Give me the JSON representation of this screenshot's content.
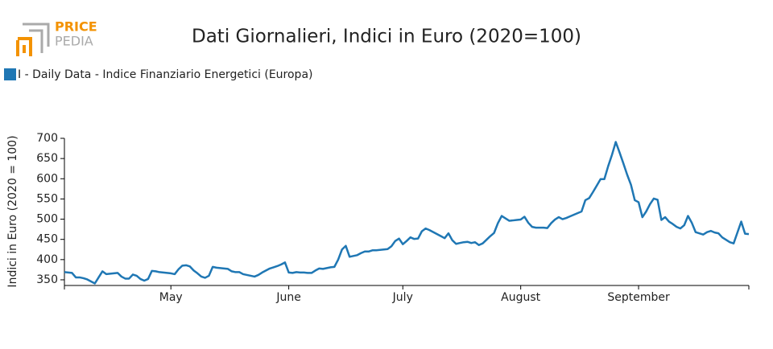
{
  "logo": {
    "top": "PRICE",
    "bottom": "PEDIA"
  },
  "chart_data": {
    "type": "line",
    "title": "Dati Giornalieri, Indici in Euro (2020=100)",
    "y_label": "Indici in Euro (2020 = 100)",
    "categories": [
      null,
      null,
      null,
      null,
      null,
      null,
      null,
      null,
      null,
      null,
      null,
      null,
      null,
      null,
      null,
      null,
      null,
      null,
      null,
      null,
      null,
      null,
      null,
      null,
      null,
      null,
      null,
      null,
      "May",
      null,
      null,
      null,
      null,
      null,
      null,
      null,
      null,
      null,
      null,
      null,
      null,
      null,
      null,
      null,
      null,
      null,
      null,
      null,
      null,
      null,
      null,
      null,
      null,
      null,
      null,
      null,
      null,
      null,
      null,
      "June",
      null,
      null,
      null,
      null,
      null,
      null,
      null,
      null,
      null,
      null,
      null,
      null,
      null,
      null,
      null,
      null,
      null,
      null,
      null,
      null,
      null,
      null,
      null,
      null,
      null,
      null,
      null,
      null,
      null,
      "July",
      null,
      null,
      null,
      null,
      null,
      null,
      null,
      null,
      null,
      null,
      null,
      null,
      null,
      null,
      null,
      null,
      null,
      null,
      null,
      null,
      null,
      null,
      null,
      null,
      null,
      null,
      null,
      null,
      null,
      null,
      "August",
      null,
      null,
      null,
      null,
      null,
      null,
      null,
      null,
      null,
      null,
      null,
      null,
      null,
      null,
      null,
      null,
      null,
      null,
      null,
      null,
      null,
      null,
      null,
      null,
      null,
      null,
      null,
      null,
      null,
      null,
      "September",
      null,
      null,
      null,
      null,
      null,
      null,
      null,
      null,
      null,
      null,
      null,
      null,
      null,
      null,
      null,
      null,
      null,
      null,
      null,
      null,
      null,
      null,
      null,
      null,
      null,
      null,
      null,
      null,
      null
    ],
    "series": [
      {
        "name": "I - Daily Data - Indice Finanziario Energetici (Europa)",
        "color": "#1f77b4",
        "values": [
          369,
          368,
          367,
          356,
          356,
          354,
          351,
          346,
          341,
          356,
          371,
          364,
          365,
          366,
          367,
          358,
          353,
          353,
          363,
          360,
          352,
          348,
          352,
          372,
          371,
          369,
          368,
          367,
          366,
          364,
          376,
          385,
          386,
          383,
          373,
          366,
          358,
          355,
          360,
          382,
          380,
          379,
          378,
          377,
          371,
          369,
          369,
          364,
          362,
          360,
          358,
          362,
          368,
          373,
          378,
          381,
          384,
          388,
          393,
          368,
          367,
          369,
          368,
          368,
          367,
          367,
          373,
          378,
          377,
          379,
          381,
          382,
          400,
          425,
          434,
          407,
          409,
          411,
          416,
          420,
          420,
          423,
          423,
          424,
          425,
          426,
          433,
          446,
          452,
          438,
          446,
          455,
          451,
          452,
          470,
          477,
          473,
          468,
          463,
          458,
          453,
          465,
          448,
          439,
          441,
          443,
          444,
          441,
          443,
          436,
          440,
          449,
          458,
          466,
          490,
          508,
          502,
          496,
          497,
          498,
          499,
          506,
          491,
          481,
          479,
          479,
          479,
          478,
          490,
          499,
          505,
          500,
          503,
          507,
          511,
          515,
          519,
          547,
          552,
          567,
          583,
          599,
          599,
          631,
          659,
          691,
          665,
          638,
          610,
          585,
          547,
          542,
          505,
          519,
          537,
          551,
          548,
          498,
          505,
          494,
          488,
          481,
          477,
          485,
          508,
          491,
          468,
          465,
          462,
          468,
          471,
          467,
          465,
          455,
          449,
          443,
          440,
          467,
          494,
          464,
          463
        ]
      }
    ],
    "ylim": [
      336,
      700
    ],
    "yticks": [
      350,
      400,
      450,
      500,
      550,
      600,
      650,
      700
    ],
    "grid": false
  }
}
